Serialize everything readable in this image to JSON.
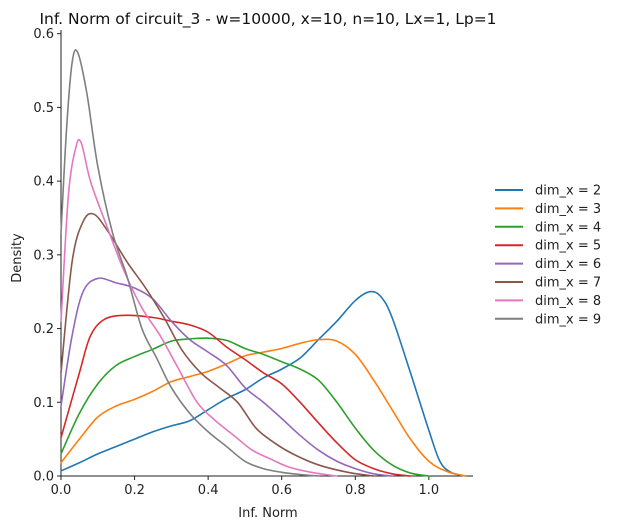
{
  "chart_data": {
    "type": "line",
    "title": "Inf. Norm of circuit_3 - w=10000, x=10, n=10, Lx=1, Lp=1",
    "xlabel": "Inf. Norm",
    "ylabel": "Density",
    "xlim": [
      0.0,
      1.12
    ],
    "ylim": [
      0.0,
      0.605
    ],
    "xticks": [
      0.0,
      0.2,
      0.4,
      0.6,
      0.8,
      1.0
    ],
    "xtick_labels": [
      "0.0",
      "0.2",
      "0.4",
      "0.6",
      "0.8",
      "1.0"
    ],
    "yticks": [
      0.0,
      0.1,
      0.2,
      0.3,
      0.4,
      0.5,
      0.6
    ],
    "ytick_labels": [
      "0.0",
      "0.1",
      "0.2",
      "0.3",
      "0.4",
      "0.5",
      "0.6"
    ],
    "grid": false,
    "legend_position": "right",
    "series": [
      {
        "name": "dim_x = 2",
        "color": "#1f77b4",
        "points": [
          [
            0.0,
            0.007
          ],
          [
            0.05,
            0.018
          ],
          [
            0.1,
            0.03
          ],
          [
            0.15,
            0.04
          ],
          [
            0.2,
            0.05
          ],
          [
            0.25,
            0.06
          ],
          [
            0.3,
            0.068
          ],
          [
            0.35,
            0.075
          ],
          [
            0.4,
            0.09
          ],
          [
            0.45,
            0.105
          ],
          [
            0.5,
            0.117
          ],
          [
            0.55,
            0.133
          ],
          [
            0.6,
            0.145
          ],
          [
            0.65,
            0.16
          ],
          [
            0.7,
            0.185
          ],
          [
            0.75,
            0.21
          ],
          [
            0.8,
            0.238
          ],
          [
            0.84,
            0.25
          ],
          [
            0.87,
            0.243
          ],
          [
            0.9,
            0.215
          ],
          [
            0.95,
            0.14
          ],
          [
            1.0,
            0.062
          ],
          [
            1.03,
            0.02
          ],
          [
            1.06,
            0.005
          ],
          [
            1.1,
            0.0
          ]
        ]
      },
      {
        "name": "dim_x = 3",
        "color": "#ff7f0e",
        "points": [
          [
            0.0,
            0.018
          ],
          [
            0.05,
            0.05
          ],
          [
            0.1,
            0.08
          ],
          [
            0.15,
            0.095
          ],
          [
            0.2,
            0.104
          ],
          [
            0.25,
            0.115
          ],
          [
            0.3,
            0.128
          ],
          [
            0.35,
            0.135
          ],
          [
            0.4,
            0.142
          ],
          [
            0.45,
            0.152
          ],
          [
            0.5,
            0.163
          ],
          [
            0.55,
            0.168
          ],
          [
            0.6,
            0.173
          ],
          [
            0.65,
            0.18
          ],
          [
            0.7,
            0.185
          ],
          [
            0.75,
            0.183
          ],
          [
            0.8,
            0.165
          ],
          [
            0.85,
            0.13
          ],
          [
            0.9,
            0.09
          ],
          [
            0.95,
            0.05
          ],
          [
            1.0,
            0.02
          ],
          [
            1.05,
            0.006
          ],
          [
            1.1,
            0.0
          ]
        ]
      },
      {
        "name": "dim_x = 4",
        "color": "#2ca02c",
        "points": [
          [
            0.0,
            0.03
          ],
          [
            0.05,
            0.085
          ],
          [
            0.1,
            0.125
          ],
          [
            0.15,
            0.15
          ],
          [
            0.2,
            0.162
          ],
          [
            0.25,
            0.172
          ],
          [
            0.3,
            0.183
          ],
          [
            0.35,
            0.186
          ],
          [
            0.4,
            0.187
          ],
          [
            0.45,
            0.184
          ],
          [
            0.5,
            0.173
          ],
          [
            0.55,
            0.165
          ],
          [
            0.6,
            0.155
          ],
          [
            0.65,
            0.145
          ],
          [
            0.7,
            0.13
          ],
          [
            0.75,
            0.1
          ],
          [
            0.8,
            0.065
          ],
          [
            0.85,
            0.035
          ],
          [
            0.9,
            0.015
          ],
          [
            0.95,
            0.004
          ],
          [
            1.0,
            0.0
          ]
        ]
      },
      {
        "name": "dim_x = 5",
        "color": "#d62728",
        "points": [
          [
            0.0,
            0.052
          ],
          [
            0.05,
            0.14
          ],
          [
            0.08,
            0.19
          ],
          [
            0.12,
            0.213
          ],
          [
            0.18,
            0.218
          ],
          [
            0.25,
            0.215
          ],
          [
            0.3,
            0.21
          ],
          [
            0.35,
            0.205
          ],
          [
            0.4,
            0.195
          ],
          [
            0.45,
            0.175
          ],
          [
            0.5,
            0.158
          ],
          [
            0.55,
            0.14
          ],
          [
            0.6,
            0.125
          ],
          [
            0.65,
            0.1
          ],
          [
            0.7,
            0.072
          ],
          [
            0.75,
            0.045
          ],
          [
            0.8,
            0.022
          ],
          [
            0.85,
            0.01
          ],
          [
            0.9,
            0.003
          ],
          [
            0.95,
            0.0
          ]
        ]
      },
      {
        "name": "dim_x = 6",
        "color": "#9467bd",
        "points": [
          [
            0.0,
            0.095
          ],
          [
            0.03,
            0.19
          ],
          [
            0.06,
            0.25
          ],
          [
            0.1,
            0.268
          ],
          [
            0.15,
            0.262
          ],
          [
            0.2,
            0.255
          ],
          [
            0.25,
            0.24
          ],
          [
            0.3,
            0.21
          ],
          [
            0.35,
            0.185
          ],
          [
            0.4,
            0.168
          ],
          [
            0.45,
            0.15
          ],
          [
            0.5,
            0.12
          ],
          [
            0.55,
            0.1
          ],
          [
            0.6,
            0.078
          ],
          [
            0.65,
            0.055
          ],
          [
            0.7,
            0.035
          ],
          [
            0.75,
            0.02
          ],
          [
            0.8,
            0.01
          ],
          [
            0.85,
            0.003
          ],
          [
            0.9,
            0.0
          ]
        ]
      },
      {
        "name": "dim_x = 7",
        "color": "#8c564b",
        "points": [
          [
            0.0,
            0.14
          ],
          [
            0.03,
            0.29
          ],
          [
            0.06,
            0.345
          ],
          [
            0.09,
            0.355
          ],
          [
            0.13,
            0.33
          ],
          [
            0.18,
            0.29
          ],
          [
            0.23,
            0.255
          ],
          [
            0.28,
            0.215
          ],
          [
            0.33,
            0.17
          ],
          [
            0.38,
            0.14
          ],
          [
            0.43,
            0.12
          ],
          [
            0.48,
            0.1
          ],
          [
            0.53,
            0.065
          ],
          [
            0.58,
            0.045
          ],
          [
            0.63,
            0.03
          ],
          [
            0.7,
            0.015
          ],
          [
            0.78,
            0.005
          ],
          [
            0.85,
            0.0
          ]
        ]
      },
      {
        "name": "dim_x = 8",
        "color": "#e377c2",
        "points": [
          [
            0.0,
            0.21
          ],
          [
            0.02,
            0.38
          ],
          [
            0.04,
            0.445
          ],
          [
            0.055,
            0.452
          ],
          [
            0.08,
            0.4
          ],
          [
            0.12,
            0.345
          ],
          [
            0.17,
            0.28
          ],
          [
            0.22,
            0.228
          ],
          [
            0.27,
            0.19
          ],
          [
            0.32,
            0.145
          ],
          [
            0.37,
            0.1
          ],
          [
            0.42,
            0.075
          ],
          [
            0.47,
            0.055
          ],
          [
            0.52,
            0.035
          ],
          [
            0.57,
            0.023
          ],
          [
            0.62,
            0.012
          ],
          [
            0.68,
            0.005
          ],
          [
            0.75,
            0.0
          ]
        ]
      },
      {
        "name": "dim_x = 9",
        "color": "#7f7f7f",
        "points": [
          [
            0.0,
            0.33
          ],
          [
            0.015,
            0.47
          ],
          [
            0.03,
            0.56
          ],
          [
            0.045,
            0.575
          ],
          [
            0.07,
            0.52
          ],
          [
            0.1,
            0.42
          ],
          [
            0.14,
            0.33
          ],
          [
            0.18,
            0.27
          ],
          [
            0.22,
            0.2
          ],
          [
            0.26,
            0.16
          ],
          [
            0.3,
            0.12
          ],
          [
            0.35,
            0.085
          ],
          [
            0.4,
            0.06
          ],
          [
            0.45,
            0.04
          ],
          [
            0.5,
            0.02
          ],
          [
            0.55,
            0.01
          ],
          [
            0.6,
            0.005
          ],
          [
            0.65,
            0.002
          ],
          [
            0.7,
            0.0
          ]
        ]
      }
    ]
  }
}
